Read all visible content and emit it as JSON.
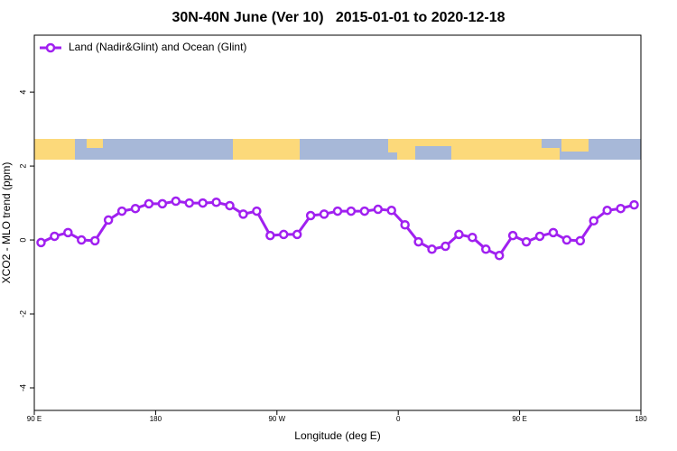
{
  "chart_data": {
    "type": "line",
    "title": "30N-40N June (Ver 10)   2015-01-01 to 2020-12-18",
    "xlabel": "Longitude (deg E)",
    "ylabel": "XCO2 - MLO trend (ppm)",
    "x": [
      95,
      105,
      115,
      125,
      135,
      145,
      155,
      165,
      175,
      185,
      195,
      205,
      215,
      225,
      235,
      245,
      255,
      265,
      275,
      285,
      295,
      305,
      315,
      325,
      335,
      345,
      355,
      365,
      375,
      385,
      395,
      405,
      415,
      425,
      435,
      445,
      455,
      465,
      475,
      485,
      495,
      505,
      515,
      525,
      535
    ],
    "series": [
      {
        "name": "Land (Nadir&Glint) and Ocean (Glint)",
        "color": "#a020f0",
        "values": [
          -0.07,
          0.1,
          0.2,
          0,
          -0.02,
          0.54,
          0.78,
          0.85,
          0.98,
          0.98,
          1.05,
          1.0,
          1.0,
          1.02,
          0.93,
          0.7,
          0.78,
          0.12,
          0.15,
          0.15,
          0.66,
          0.7,
          0.78,
          0.78,
          0.78,
          0.83,
          0.8,
          0.41,
          -0.05,
          -0.25,
          -0.17,
          0.15,
          0.07,
          -0.25,
          -0.42,
          0.12,
          -0.05,
          0.1,
          0.2,
          0,
          -0.02,
          0.52,
          0.8,
          0.85,
          0.95
        ]
      }
    ],
    "xlim": [
      90,
      540
    ],
    "xticks": [
      {
        "value": 90,
        "label": "90 E"
      },
      180,
      {
        "value": 270,
        "label": "90 W"
      },
      {
        "value": 360,
        "label": "0"
      },
      {
        "value": 450,
        "label": "90 E"
      },
      {
        "value": 540,
        "label": "180"
      }
    ],
    "ylim": [
      -4.61,
      5.54
    ],
    "yticks": [
      -4,
      -2,
      0,
      2,
      4
    ],
    "legend": "top-left"
  }
}
